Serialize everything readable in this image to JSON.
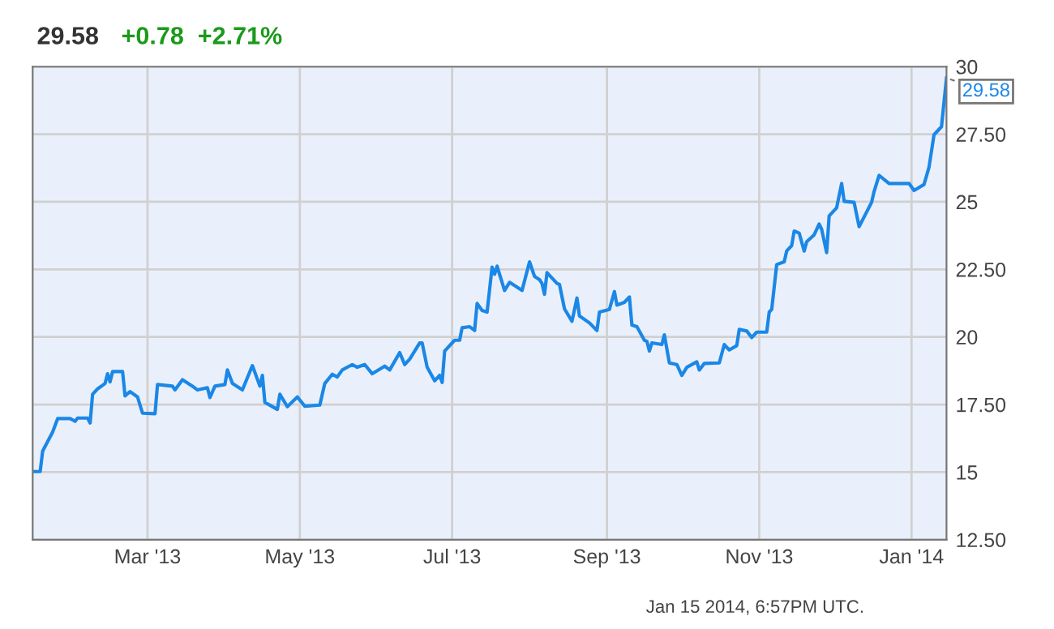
{
  "chart_data": {
    "type": "line",
    "title": "29.58",
    "subtitle": "+0.78  +2.71%",
    "x": [
      "2013-01-14",
      "2013-01-17",
      "2013-01-18",
      "2013-01-22",
      "2013-01-24",
      "2013-01-29",
      "2013-01-31",
      "2013-02-01",
      "2013-02-05",
      "2013-02-06",
      "2013-02-07",
      "2013-02-09",
      "2013-02-12",
      "2013-02-13",
      "2013-02-14",
      "2013-02-15",
      "2013-02-19",
      "2013-02-20",
      "2013-02-22",
      "2013-02-25",
      "2013-02-27",
      "2013-03-04",
      "2013-03-05",
      "2013-03-11",
      "2013-03-12",
      "2013-03-15",
      "2013-03-19",
      "2013-03-21",
      "2013-03-25",
      "2013-03-26",
      "2013-03-28",
      "2013-04-01",
      "2013-04-02",
      "2013-04-04",
      "2013-04-08",
      "2013-04-12",
      "2013-04-15",
      "2013-04-16",
      "2013-04-17",
      "2013-04-22",
      "2013-04-23",
      "2013-04-26",
      "2013-04-30",
      "2013-05-03",
      "2013-05-09",
      "2013-05-11",
      "2013-05-14",
      "2013-05-16",
      "2013-05-18",
      "2013-05-22",
      "2013-05-24",
      "2013-05-27",
      "2013-05-30",
      "2013-06-04",
      "2013-06-06",
      "2013-06-10",
      "2013-06-12",
      "2013-06-14",
      "2013-06-18",
      "2013-06-19",
      "2013-06-21",
      "2013-06-24",
      "2013-06-26",
      "2013-06-27",
      "2013-06-28",
      "2013-07-02",
      "2013-07-04",
      "2013-07-05",
      "2013-07-08",
      "2013-07-10",
      "2013-07-11",
      "2013-07-13",
      "2013-07-15",
      "2013-07-17",
      "2013-07-18",
      "2013-07-19",
      "2013-07-22",
      "2013-07-24",
      "2013-07-29",
      "2013-08-01",
      "2013-08-03",
      "2013-08-05",
      "2013-08-06",
      "2013-08-07",
      "2013-08-08",
      "2013-08-12",
      "2013-08-13",
      "2013-08-15",
      "2013-08-18",
      "2013-08-20",
      "2013-08-21",
      "2013-08-25",
      "2013-08-28",
      "2013-08-29",
      "2013-09-02",
      "2013-09-04",
      "2013-09-05",
      "2013-09-08",
      "2013-09-10",
      "2013-09-11",
      "2013-09-13",
      "2013-09-16",
      "2013-09-17",
      "2013-09-18",
      "2013-09-19",
      "2013-09-23",
      "2013-09-24",
      "2013-09-26",
      "2013-09-29",
      "2013-10-01",
      "2013-10-03",
      "2013-10-07",
      "2013-10-08",
      "2013-10-10",
      "2013-10-16",
      "2013-10-18",
      "2013-10-20",
      "2013-10-23",
      "2013-10-24",
      "2013-10-27",
      "2013-10-29",
      "2013-10-31",
      "2013-11-04",
      "2013-11-05",
      "2013-11-06",
      "2013-11-08",
      "2013-11-11",
      "2013-11-12",
      "2013-11-14",
      "2013-11-15",
      "2013-11-17",
      "2013-11-19",
      "2013-11-20",
      "2013-11-23",
      "2013-11-25",
      "2013-11-26",
      "2013-11-28",
      "2013-11-29",
      "2013-12-02",
      "2013-12-04",
      "2013-12-05",
      "2013-12-09",
      "2013-12-11",
      "2013-12-16",
      "2013-12-17",
      "2013-12-19",
      "2013-12-23",
      "2013-12-31",
      "2014-01-02",
      "2014-01-06",
      "2014-01-08",
      "2014-01-10",
      "2014-01-13",
      "2014-01-15"
    ],
    "series": [
      {
        "color": "#1b87e6",
        "values": [
          15.02,
          15.02,
          15.78,
          16.48,
          16.98,
          16.98,
          16.88,
          17.0,
          17.0,
          16.82,
          17.88,
          18.08,
          18.28,
          18.64,
          18.34,
          18.72,
          18.72,
          17.82,
          17.98,
          17.78,
          17.18,
          17.16,
          18.24,
          18.18,
          18.04,
          18.42,
          18.18,
          18.04,
          18.12,
          17.76,
          18.18,
          18.24,
          18.78,
          18.28,
          18.04,
          18.94,
          18.18,
          18.58,
          17.58,
          17.32,
          17.88,
          17.42,
          17.78,
          17.44,
          17.48,
          18.28,
          18.62,
          18.52,
          18.78,
          18.98,
          18.88,
          18.98,
          18.64,
          18.92,
          18.78,
          19.42,
          18.98,
          19.18,
          19.78,
          19.78,
          18.88,
          18.38,
          18.58,
          18.32,
          19.48,
          19.88,
          19.88,
          20.34,
          20.38,
          20.24,
          21.24,
          20.98,
          20.92,
          22.58,
          22.32,
          22.62,
          21.72,
          22.02,
          21.72,
          22.78,
          22.24,
          22.12,
          21.98,
          21.58,
          22.38,
          21.98,
          21.94,
          21.04,
          20.58,
          21.44,
          20.78,
          20.52,
          20.24,
          20.92,
          21.02,
          21.68,
          21.18,
          21.28,
          21.48,
          20.44,
          20.38,
          19.88,
          19.84,
          19.48,
          19.78,
          19.72,
          20.08,
          19.04,
          18.98,
          18.58,
          18.88,
          19.08,
          18.78,
          19.02,
          19.04,
          19.72,
          19.52,
          19.68,
          20.28,
          20.22,
          19.98,
          20.18,
          20.18,
          20.92,
          21.02,
          22.68,
          22.78,
          23.18,
          23.38,
          23.92,
          23.84,
          23.18,
          23.52,
          23.78,
          24.18,
          23.98,
          23.12,
          24.48,
          24.78,
          25.68,
          25.02,
          24.98,
          24.08,
          24.98,
          25.38,
          25.98,
          25.68,
          25.68,
          25.42,
          25.64,
          26.28,
          27.48,
          27.78,
          29.58
        ]
      }
    ],
    "xlim": [
      "2013-01-14",
      "2014-01-15"
    ],
    "xticks": [
      {
        "value": "2013-03-01",
        "label": "Mar '13"
      },
      {
        "value": "2013-05-01",
        "label": "May '13"
      },
      {
        "value": "2013-07-01",
        "label": "Jul '13"
      },
      {
        "value": "2013-09-01",
        "label": "Sep '13"
      },
      {
        "value": "2013-11-01",
        "label": "Nov '13"
      },
      {
        "value": "2014-01-01",
        "label": "Jan '14"
      }
    ],
    "ylim": [
      12.5,
      30
    ],
    "yticks": [
      {
        "value": 12.5,
        "label": "12.50"
      },
      15,
      {
        "value": 17.5,
        "label": "17.50"
      },
      20,
      {
        "value": 22.5,
        "label": "22.50"
      },
      25,
      {
        "value": 27.5,
        "label": "27.50"
      },
      30
    ],
    "grid": true,
    "annotations": [
      {
        "text": "29.58",
        "x": "2014-01-15",
        "y": 29.58
      },
      "Jan 15 2014, 6:57PM UTC."
    ]
  }
}
